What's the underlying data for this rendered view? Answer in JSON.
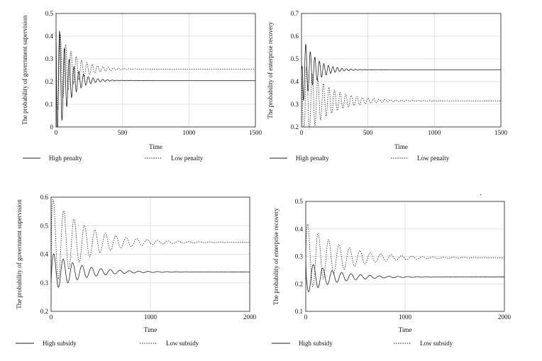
{
  "chart_data": [
    {
      "type": "line",
      "xlabel": "Time",
      "ylabel": "The probability of government supervision",
      "xlim": [
        0,
        1500
      ],
      "ylim": [
        0,
        0.5
      ],
      "xticks": [
        "0",
        "500",
        "1000",
        "1500"
      ],
      "yticks": [
        "0",
        "0.1",
        "0.2",
        "0.3",
        "0.4",
        "0.5"
      ],
      "grid": true,
      "legend": "bottom",
      "series": [
        {
          "name": "High penalty",
          "style": "solid",
          "start": 0.42,
          "amp": 0.3,
          "eq": 0.205,
          "decay": 85,
          "period": 36,
          "phase": 1.57
        },
        {
          "name": "Low penalty",
          "style": "dotted",
          "start": 0.41,
          "amp": 0.2,
          "eq": 0.255,
          "decay": 120,
          "period": 40,
          "phase": 1.2
        }
      ]
    },
    {
      "type": "line",
      "xlabel": "Time",
      "ylabel": "The probability of enterprise recovery",
      "xlim": [
        0,
        1500
      ],
      "ylim": [
        0.2,
        0.7
      ],
      "xticks": [
        "0",
        "500",
        "1000",
        "1500"
      ],
      "yticks": [
        "0.2",
        "0.3",
        "0.4",
        "0.5",
        "0.6",
        "0.7"
      ],
      "grid": true,
      "legend": "bottom",
      "series": [
        {
          "name": "High penalty",
          "style": "solid",
          "start": 0.45,
          "amp": 0.16,
          "eq": 0.452,
          "decay": 95,
          "period": 34,
          "phase": 0.3
        },
        {
          "name": "Low penalty",
          "style": "dotted",
          "start": 0.44,
          "amp": 0.19,
          "eq": 0.315,
          "decay": 180,
          "period": 42,
          "phase": 0.5
        }
      ]
    },
    {
      "type": "line",
      "xlabel": "Time",
      "ylabel": "The probability of government supervision",
      "xlim": [
        0,
        2000
      ],
      "ylim": [
        0.2,
        0.6
      ],
      "xticks": [
        "0",
        "1000",
        "2000"
      ],
      "yticks": [
        "0.2",
        "0.3",
        "0.4",
        "0.5",
        "0.6"
      ],
      "grid": true,
      "legend": "bottom",
      "series": [
        {
          "name": "High subsidy",
          "style": "solid",
          "start": 0.3,
          "amp": 0.07,
          "eq": 0.338,
          "decay": 280,
          "period": 95,
          "phase": -1.8
        },
        {
          "name": "Low subsidy",
          "style": "dotted",
          "start": 0.32,
          "amp": 0.16,
          "eq": 0.442,
          "decay": 340,
          "period": 105,
          "phase": -1.3
        }
      ]
    },
    {
      "type": "line",
      "xlabel": "Time",
      "ylabel": "The probability of enterprise recovery",
      "xlim": [
        0,
        2000
      ],
      "ylim": [
        0.1,
        0.5
      ],
      "xticks": [
        "0",
        "1000",
        "2000"
      ],
      "yticks": [
        "0.1",
        "0.2",
        "0.3",
        "0.4",
        "0.5"
      ],
      "grid": true,
      "legend": "bottom",
      "series": [
        {
          "name": "High subsidy",
          "style": "solid",
          "start": 0.28,
          "amp": 0.06,
          "eq": 0.225,
          "decay": 280,
          "period": 95,
          "phase": 1.2
        },
        {
          "name": "Low subsidy",
          "style": "dotted",
          "start": 0.3,
          "amp": 0.13,
          "eq": 0.295,
          "decay": 340,
          "period": 105,
          "phase": -1.2
        }
      ]
    }
  ]
}
